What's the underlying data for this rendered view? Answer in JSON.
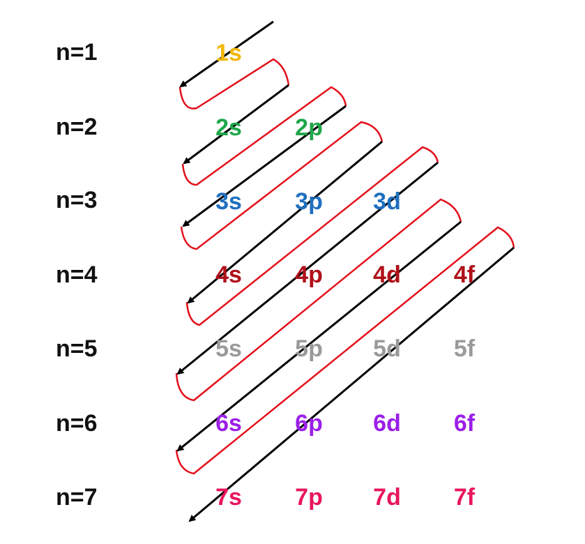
{
  "shells": [
    {
      "label": "n=1",
      "color": "#F2B705",
      "orbitals": [
        "1s"
      ]
    },
    {
      "label": "n=2",
      "color": "#1FA64A",
      "orbitals": [
        "2s",
        "2p"
      ]
    },
    {
      "label": "n=3",
      "color": "#1F6FBF",
      "orbitals": [
        "3s",
        "3p",
        "3d"
      ]
    },
    {
      "label": "n=4",
      "color": "#B0101A",
      "orbitals": [
        "4s",
        "4p",
        "4d",
        "4f"
      ]
    },
    {
      "label": "n=5",
      "color": "#9A9A9A",
      "orbitals": [
        "5s",
        "5p",
        "5d",
        "5f"
      ]
    },
    {
      "label": "n=6",
      "color": "#9B1FE8",
      "orbitals": [
        "6s",
        "6p",
        "6d",
        "6f"
      ]
    },
    {
      "label": "n=7",
      "color": "#E8165E",
      "orbitals": [
        "7s",
        "7p",
        "7d",
        "7f"
      ]
    }
  ],
  "colors": {
    "arrow": "#000000",
    "connector": "#E3101B",
    "row_label": "#111111"
  }
}
